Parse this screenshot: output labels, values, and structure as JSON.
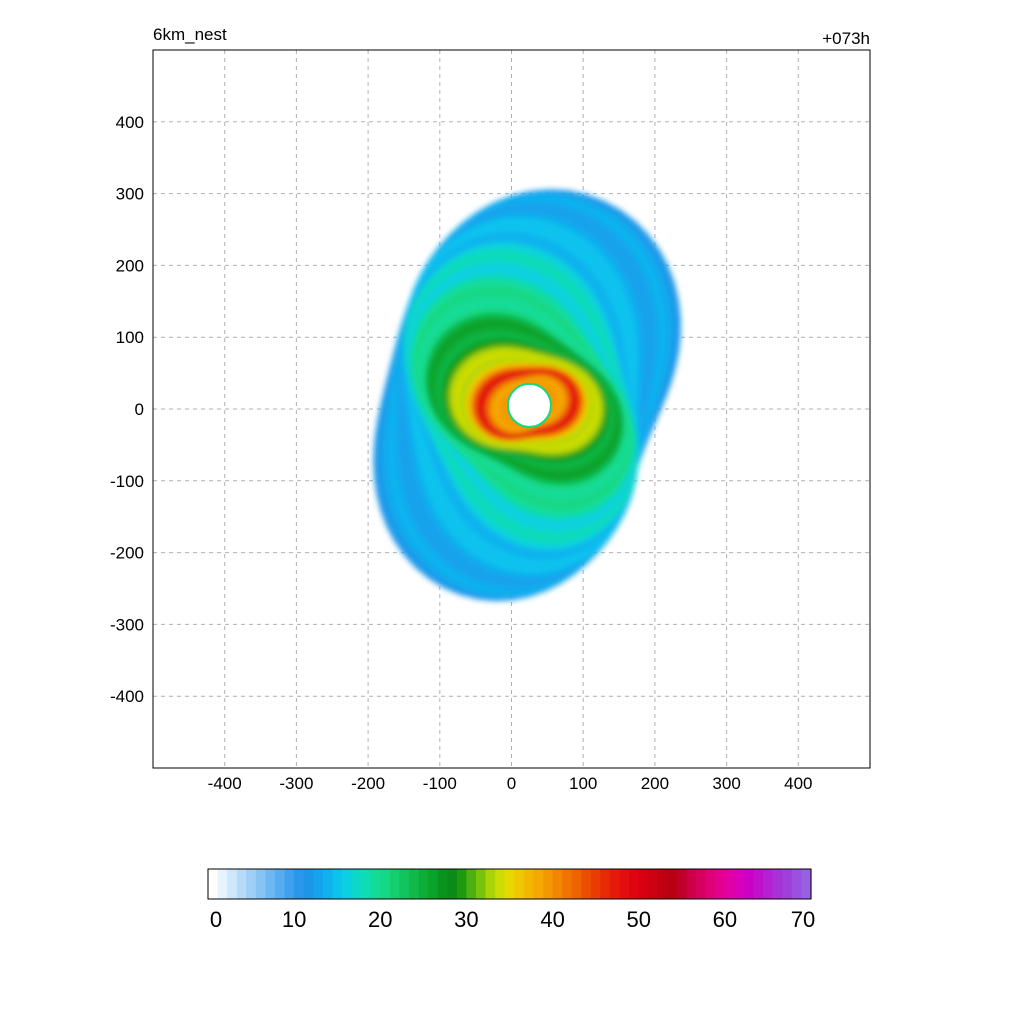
{
  "chart_data": {
    "type": "heatmap",
    "title": "6km_nest",
    "subtitle": "+073h",
    "xlim": [
      -500,
      500
    ],
    "ylim": [
      -500,
      500
    ],
    "x_ticks": [
      -400,
      -300,
      -200,
      -100,
      0,
      100,
      200,
      300,
      400
    ],
    "y_ticks": [
      400,
      300,
      200,
      100,
      0,
      -100,
      -200,
      -300,
      -400
    ],
    "grid": "dashed",
    "colorbar": {
      "range": [
        0,
        70
      ],
      "levels_per_unit": 1,
      "ticks": [
        0,
        10,
        20,
        30,
        40,
        50,
        60,
        70
      ],
      "colors": [
        "#ffffff",
        "#e7f3fd",
        "#cfe7fb",
        "#b5dbf9",
        "#9dcff7",
        "#86c4f5",
        "#6db8f2",
        "#55acf0",
        "#3ea0ee",
        "#2a96ec",
        "#1e96e8",
        "#14a3ec",
        "#0fb2ee",
        "#0cc3ee",
        "#0cd0e0",
        "#0dd8c8",
        "#0fdcb0",
        "#12dc98",
        "#14d884",
        "#14cf70",
        "#12c45c",
        "#0fba4a",
        "#0cae38",
        "#0aa22a",
        "#0a941e",
        "#0a8a16",
        "#1e9a10",
        "#4cb010",
        "#78c40c",
        "#a8d408",
        "#cddc04",
        "#e6d800",
        "#f0c800",
        "#f2b800",
        "#f4a800",
        "#f49800",
        "#f28600",
        "#f07400",
        "#ee6200",
        "#ec4e00",
        "#ea3c00",
        "#e82a04",
        "#e61a0a",
        "#e40e0e",
        "#e00410",
        "#d80010",
        "#cc0010",
        "#c00010",
        "#b80012",
        "#c0002a",
        "#cc0046",
        "#d6005e",
        "#e00078",
        "#e40090",
        "#e000a6",
        "#d800b8",
        "#cc00c4",
        "#c010cc",
        "#b420d2",
        "#a632d8",
        "#a040dc",
        "#9c50e0",
        "#9a60e4"
      ]
    },
    "storm_structure": {
      "description_units": "km",
      "center": [
        25,
        5
      ],
      "eye_radius": 30,
      "max_intensity": 52
    }
  }
}
